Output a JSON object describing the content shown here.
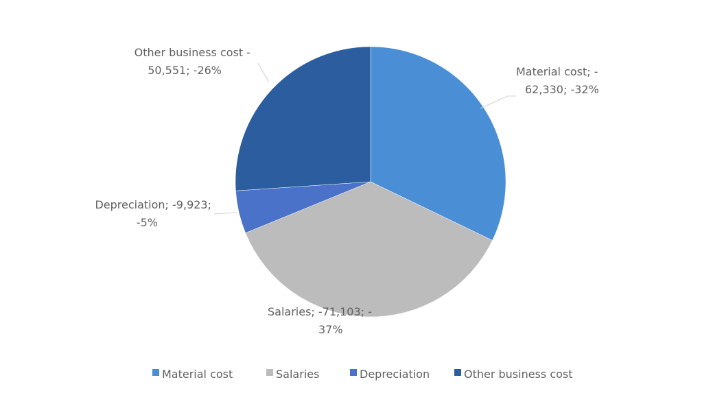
{
  "chart_data": {
    "type": "pie",
    "categories": [
      "Material cost",
      "Salaries",
      "Depreciation",
      "Other business cost"
    ],
    "values": [
      -62330,
      -71103,
      -9923,
      -50551
    ],
    "value_labels": [
      [
        "Material cost; -",
        "62,330; -32%"
      ],
      [
        "Salaries; -71,103; -",
        "37%"
      ],
      [
        "Depreciation; -9,923;",
        "-5%"
      ],
      [
        "Other business cost -",
        "50,551; -26%"
      ]
    ],
    "colors": [
      "#4a8fd6",
      "#bcbcbc",
      "#4a72c8",
      "#2c5d9f"
    ],
    "legend": "bottom"
  }
}
